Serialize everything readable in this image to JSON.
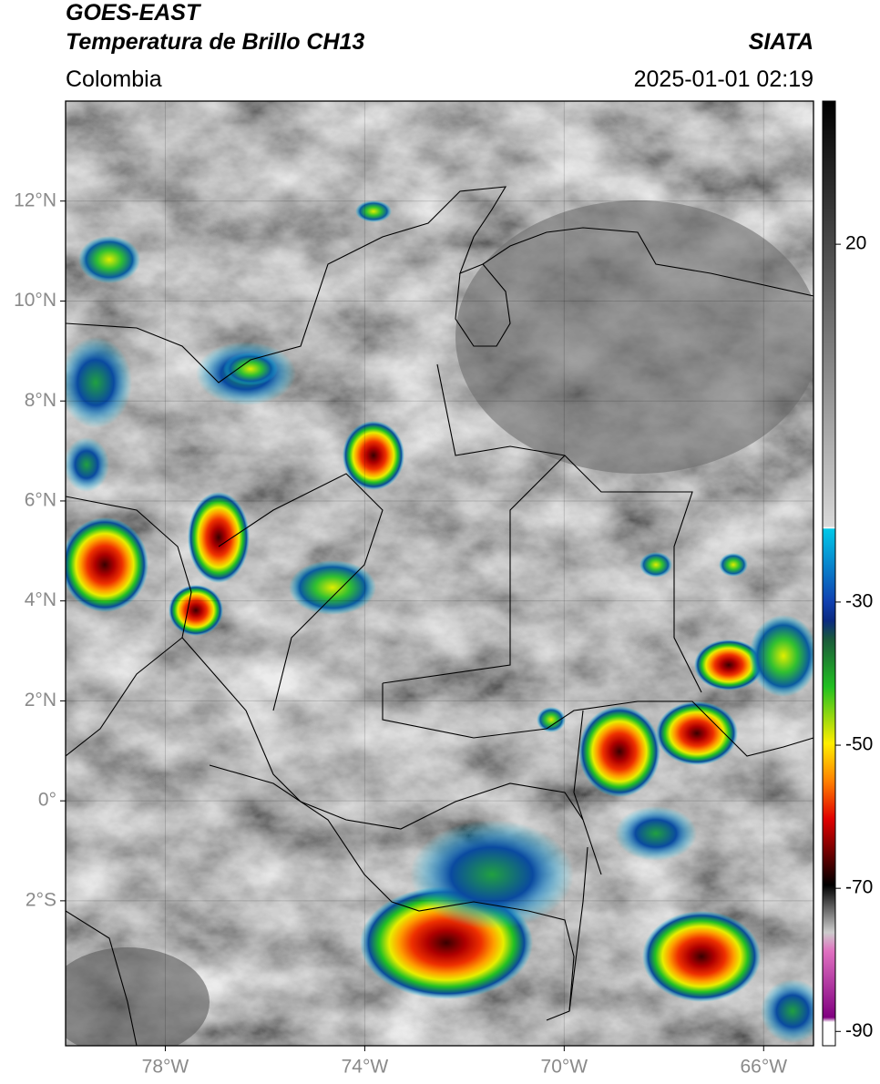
{
  "header": {
    "title": "GOES-EAST",
    "subtitle": "Temperatura de Brillo CH13",
    "region": "Colombia",
    "source": "SIATA",
    "datetime": "2025-01-01 02:19"
  },
  "map": {
    "lon_range": [
      -80,
      -65
    ],
    "lat_range": [
      -4.9,
      14
    ],
    "lat_ticks": [
      {
        "value": 12,
        "label": "12°N"
      },
      {
        "value": 10,
        "label": "10°N"
      },
      {
        "value": 8,
        "label": "8°N"
      },
      {
        "value": 6,
        "label": "6°N"
      },
      {
        "value": 4,
        "label": "4°N"
      },
      {
        "value": 2,
        "label": "2°N"
      },
      {
        "value": 0,
        "label": "0°"
      },
      {
        "value": -2,
        "label": "2°S"
      }
    ],
    "lon_ticks": [
      {
        "value": -78,
        "label": "78°W"
      },
      {
        "value": -74,
        "label": "74°W"
      },
      {
        "value": -70,
        "label": "70°W"
      },
      {
        "value": -66,
        "label": "66°W"
      }
    ],
    "grid": true
  },
  "colorbar": {
    "range": [
      -92,
      40
    ],
    "ticks": [
      20,
      -30,
      -50,
      -70,
      -90
    ]
  }
}
